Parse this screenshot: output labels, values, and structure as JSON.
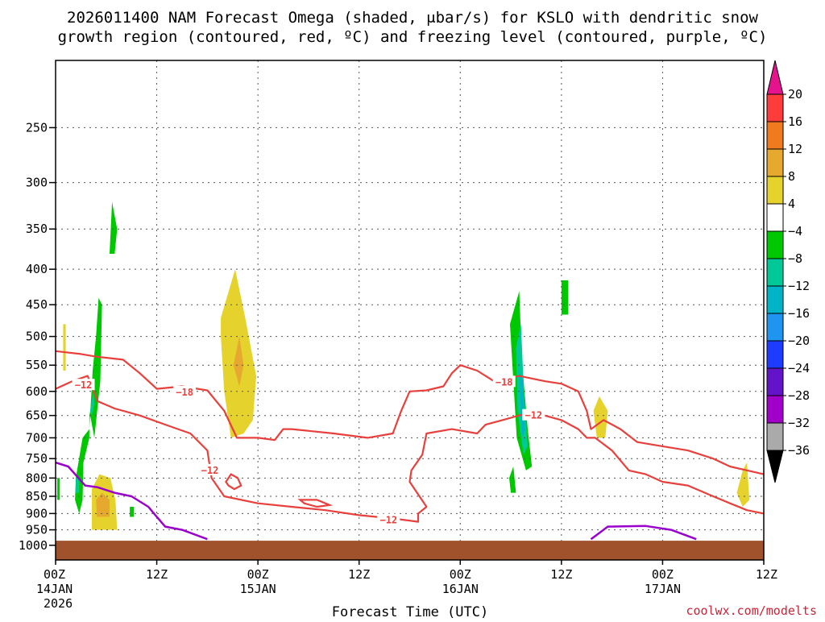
{
  "title_line1": "2026011400 NAM Forecast Omega (shaded, μbar/s) for KSLO with dendritic snow",
  "title_line2": "growth region (contoured, red, ºC) and freezing level (contoured, purple, ºC)",
  "credit": "coolwx.com/modelts",
  "chart_data": {
    "type": "heatmap",
    "title": "2026011400 NAM Forecast Omega (shaded, μbar/s) for KSLO with dendritic snow growth region (contoured, red, ºC) and freezing level (contoured, purple, ºC)",
    "xlabel": "Forecast Time (UTC)",
    "ylabel": "",
    "x_range_hours": [
      0,
      84
    ],
    "x_ticks": [
      {
        "hour": 0,
        "label": "00Z",
        "sub1": "14JAN",
        "sub2": "2026"
      },
      {
        "hour": 12,
        "label": "12Z",
        "sub1": "",
        "sub2": ""
      },
      {
        "hour": 24,
        "label": "00Z",
        "sub1": "15JAN",
        "sub2": ""
      },
      {
        "hour": 36,
        "label": "12Z",
        "sub1": "",
        "sub2": ""
      },
      {
        "hour": 48,
        "label": "00Z",
        "sub1": "16JAN",
        "sub2": ""
      },
      {
        "hour": 60,
        "label": "12Z",
        "sub1": "",
        "sub2": ""
      },
      {
        "hour": 72,
        "label": "00Z",
        "sub1": "17JAN",
        "sub2": ""
      },
      {
        "hour": 84,
        "label": "12Z",
        "sub1": "",
        "sub2": ""
      }
    ],
    "y_range_hpa": [
      1050,
      200
    ],
    "y_scale": "log",
    "y_ticks": [
      250,
      300,
      350,
      400,
      450,
      500,
      550,
      600,
      650,
      700,
      750,
      800,
      850,
      900,
      950,
      1000
    ],
    "grid": true,
    "colorbar": {
      "labels": [
        "20",
        "16",
        "12",
        "8",
        "4",
        "−4",
        "−8",
        "−12",
        "−16",
        "−20",
        "−24",
        "−28",
        "−32",
        "−36"
      ],
      "colors": [
        "#ff3c3c",
        "#f07a1e",
        "#e6a82e",
        "#e6d22c",
        "#ffffff",
        "#00c800",
        "#00c896",
        "#00b4c8",
        "#1e96f0",
        "#1e3cff",
        "#6414c8",
        "#a000c8",
        "#aaaaaa"
      ],
      "top_arrow_color": "#e6148c",
      "bottom_arrow_color": "#000000"
    },
    "omega_regions": [
      {
        "color": "#00c800",
        "pts": [
          [
            4.0,
            640
          ],
          [
            4.6,
            700
          ],
          [
            5.3,
            580
          ],
          [
            5.5,
            450
          ],
          [
            5.1,
            440
          ],
          [
            4.8,
            500
          ],
          [
            4.4,
            560
          ],
          [
            4.0,
            680
          ],
          [
            3.2,
            700
          ],
          [
            2.4,
            800
          ],
          [
            2.3,
            860
          ],
          [
            2.8,
            900
          ],
          [
            3.2,
            860
          ],
          [
            3.3,
            760
          ],
          [
            4.0,
            700
          ]
        ]
      },
      {
        "color": "#00c896",
        "pts": [
          [
            4.1,
            640
          ],
          [
            4.5,
            600
          ],
          [
            4.6,
            625
          ],
          [
            4.3,
            650
          ]
        ]
      },
      {
        "color": "#00c896",
        "pts": [
          [
            2.4,
            800
          ],
          [
            2.8,
            800
          ],
          [
            2.8,
            840
          ],
          [
            2.4,
            840
          ]
        ]
      },
      {
        "color": "#e6d22c",
        "pts": [
          [
            0.9,
            480
          ],
          [
            1.2,
            480
          ],
          [
            1.2,
            560
          ],
          [
            0.9,
            560
          ]
        ]
      },
      {
        "color": "#e6d22c",
        "pts": [
          [
            4.3,
            830
          ],
          [
            5.2,
            790
          ],
          [
            6.5,
            800
          ],
          [
            7.1,
            860
          ],
          [
            7.3,
            950
          ],
          [
            4.3,
            950
          ]
        ]
      },
      {
        "color": "#e6a82e",
        "pts": [
          [
            4.8,
            860
          ],
          [
            5.5,
            840
          ],
          [
            6.4,
            860
          ],
          [
            6.4,
            910
          ],
          [
            4.9,
            910
          ]
        ]
      },
      {
        "color": "#00c800",
        "pts": [
          [
            6.4,
            380
          ],
          [
            6.7,
            320
          ],
          [
            7.3,
            350
          ],
          [
            7.0,
            380
          ]
        ]
      },
      {
        "color": "#00c800",
        "pts": [
          [
            8.8,
            880
          ],
          [
            9.3,
            880
          ],
          [
            9.3,
            910
          ],
          [
            8.8,
            910
          ]
        ]
      },
      {
        "color": "#00c800",
        "pts": [
          [
            0.2,
            800
          ],
          [
            0.5,
            800
          ],
          [
            0.5,
            860
          ],
          [
            0.2,
            860
          ]
        ]
      },
      {
        "color": "#e6d22c",
        "pts": [
          [
            19.6,
            470
          ],
          [
            21.3,
            400
          ],
          [
            22.5,
            470
          ],
          [
            23.8,
            570
          ],
          [
            23.4,
            660
          ],
          [
            22.3,
            690
          ],
          [
            20.8,
            700
          ],
          [
            20.0,
            600
          ],
          [
            19.6,
            500
          ]
        ]
      },
      {
        "color": "#e6a82e",
        "pts": [
          [
            21.1,
            550
          ],
          [
            21.8,
            500
          ],
          [
            22.3,
            550
          ],
          [
            21.8,
            590
          ]
        ]
      },
      {
        "color": "#00c800",
        "pts": [
          [
            53.9,
            480
          ],
          [
            55.0,
            430
          ],
          [
            55.3,
            540
          ],
          [
            56.0,
            680
          ],
          [
            56.5,
            770
          ],
          [
            55.8,
            780
          ],
          [
            54.7,
            700
          ],
          [
            54.3,
            580
          ]
        ]
      },
      {
        "color": "#00c896",
        "pts": [
          [
            54.6,
            520
          ],
          [
            55.2,
            480
          ],
          [
            55.6,
            620
          ],
          [
            56.0,
            720
          ],
          [
            55.5,
            740
          ],
          [
            54.8,
            640
          ]
        ]
      },
      {
        "color": "#00b4c8",
        "pts": [
          [
            55.0,
            560
          ],
          [
            55.4,
            580
          ],
          [
            55.7,
            680
          ],
          [
            55.3,
            700
          ]
        ]
      },
      {
        "color": "#00c800",
        "pts": [
          [
            53.8,
            800
          ],
          [
            54.3,
            770
          ],
          [
            54.6,
            840
          ],
          [
            54.0,
            840
          ]
        ]
      },
      {
        "color": "#00c800",
        "pts": [
          [
            60.0,
            415
          ],
          [
            60.8,
            415
          ],
          [
            60.8,
            465
          ],
          [
            60.0,
            465
          ]
        ]
      },
      {
        "color": "#e6d22c",
        "pts": [
          [
            63.8,
            640
          ],
          [
            64.5,
            610
          ],
          [
            65.5,
            640
          ],
          [
            65.2,
            700
          ],
          [
            64.2,
            700
          ]
        ]
      },
      {
        "color": "#e6d22c",
        "pts": [
          [
            80.8,
            840
          ],
          [
            81.5,
            780
          ],
          [
            82.0,
            760
          ],
          [
            82.3,
            860
          ],
          [
            81.5,
            880
          ]
        ]
      }
    ],
    "isotherms": [
      {
        "label": "−12",
        "color": "#e8403c",
        "pts": [
          [
            0,
            595
          ],
          [
            2,
            580
          ],
          [
            3.8,
            570
          ],
          [
            5,
            620
          ],
          [
            7,
            635
          ],
          [
            10,
            650
          ],
          [
            13,
            670
          ],
          [
            16,
            690
          ],
          [
            18,
            730
          ],
          [
            18.5,
            800
          ],
          [
            20,
            850
          ],
          [
            24,
            870
          ],
          [
            28,
            880
          ],
          [
            32,
            890
          ],
          [
            36,
            905
          ],
          [
            40,
            915
          ],
          [
            43,
            925
          ],
          [
            43,
            900
          ],
          [
            44,
            880
          ],
          [
            42,
            810
          ],
          [
            42.2,
            780
          ],
          [
            43.5,
            740
          ],
          [
            44,
            690
          ],
          [
            47,
            680
          ],
          [
            50,
            690
          ],
          [
            51,
            670
          ],
          [
            53,
            660
          ],
          [
            56,
            645
          ],
          [
            58,
            650
          ],
          [
            60,
            660
          ],
          [
            62,
            680
          ],
          [
            63,
            700
          ],
          [
            64,
            700
          ],
          [
            66,
            730
          ],
          [
            68,
            780
          ],
          [
            70,
            790
          ],
          [
            72,
            810
          ],
          [
            75,
            820
          ],
          [
            78,
            850
          ],
          [
            80,
            870
          ],
          [
            82,
            890
          ],
          [
            84,
            900
          ]
        ]
      },
      {
        "label": "−18",
        "color": "#e8403c",
        "pts": [
          [
            0,
            525
          ],
          [
            3,
            530
          ],
          [
            5,
            535
          ],
          [
            8,
            540
          ],
          [
            10,
            565
          ],
          [
            12,
            595
          ],
          [
            15,
            590
          ],
          [
            18,
            598
          ],
          [
            20,
            640
          ],
          [
            21.5,
            700
          ],
          [
            24,
            700
          ],
          [
            26,
            705
          ],
          [
            27,
            680
          ],
          [
            28,
            680
          ],
          [
            33,
            690
          ],
          [
            37,
            700
          ],
          [
            40,
            690
          ],
          [
            41,
            640
          ],
          [
            42,
            600
          ],
          [
            44,
            598
          ],
          [
            46,
            590
          ],
          [
            47,
            565
          ],
          [
            48,
            550
          ],
          [
            50,
            560
          ],
          [
            52,
            580
          ],
          [
            55,
            570
          ],
          [
            58,
            580
          ],
          [
            60,
            585
          ],
          [
            62,
            600
          ],
          [
            63,
            640
          ],
          [
            63.5,
            680
          ],
          [
            65,
            660
          ],
          [
            67,
            680
          ],
          [
            69,
            710
          ],
          [
            72,
            720
          ],
          [
            75,
            730
          ],
          [
            78,
            750
          ],
          [
            80,
            770
          ],
          [
            84,
            790
          ]
        ]
      }
    ],
    "small_isotherms": [
      {
        "pts": [
          [
            20.2,
            810
          ],
          [
            20.8,
            790
          ],
          [
            21.6,
            800
          ],
          [
            22.0,
            820
          ],
          [
            21.2,
            830
          ],
          [
            20.5,
            820
          ]
        ]
      },
      {
        "pts": [
          [
            29.0,
            860
          ],
          [
            31.0,
            860
          ],
          [
            32.5,
            875
          ],
          [
            31.0,
            880
          ],
          [
            29.5,
            870
          ]
        ]
      }
    ],
    "isotherm_labels": [
      {
        "text": "−12",
        "x": 3.3,
        "p": 588
      },
      {
        "text": "−18",
        "x": 15.3,
        "p": 602
      },
      {
        "text": "−12",
        "x": 18.3,
        "p": 780
      },
      {
        "text": "−12",
        "x": 39.5,
        "p": 920
      },
      {
        "text": "−18",
        "x": 53.2,
        "p": 582
      },
      {
        "text": "−12",
        "x": 56.7,
        "p": 650
      }
    ],
    "freezing_level": [
      {
        "color": "#9900cc",
        "pts": [
          [
            0,
            760
          ],
          [
            1.5,
            770
          ],
          [
            3.5,
            820
          ],
          [
            5,
            825
          ],
          [
            7,
            840
          ],
          [
            9,
            850
          ],
          [
            11,
            880
          ],
          [
            12,
            910
          ],
          [
            13,
            940
          ],
          [
            15,
            950
          ],
          [
            18,
            980
          ]
        ]
      },
      {
        "color": "#9900cc",
        "pts": [
          [
            63.5,
            980
          ],
          [
            65.5,
            940
          ],
          [
            70,
            938
          ],
          [
            73,
            950
          ],
          [
            76,
            980
          ]
        ]
      }
    ],
    "terrain_p_top": 985,
    "terrain_color": "#a0522d"
  }
}
